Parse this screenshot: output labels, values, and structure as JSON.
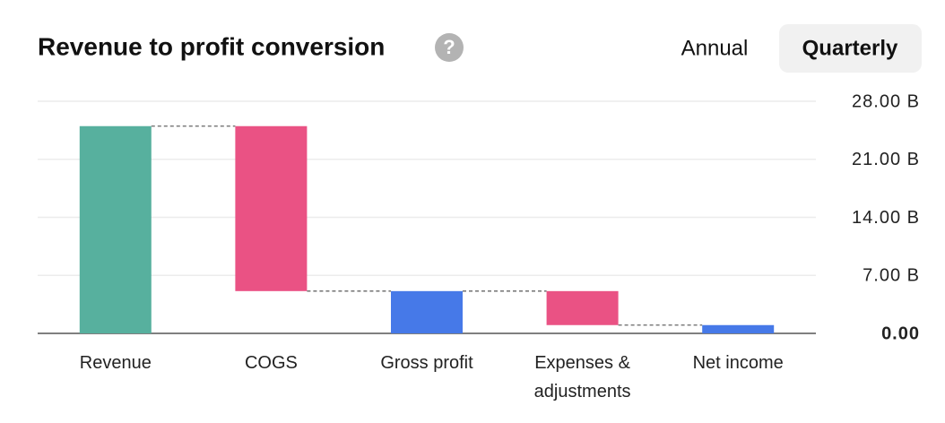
{
  "chart_data": {
    "type": "waterfall",
    "title": "Revenue to profit conversion",
    "info_icon": "?",
    "tabs": [
      "Annual",
      "Quarterly"
    ],
    "selected_tab": 1,
    "categories": [
      "Revenue",
      "COGS",
      "Gross profit",
      "Expenses & adjustments",
      "Net income"
    ],
    "values": [
      25.0,
      -19.9,
      5.1,
      -4.1,
      1.0
    ],
    "measures": [
      "total",
      "relative",
      "total",
      "relative",
      "total"
    ],
    "colors": [
      "#57b09e",
      "#ea5284",
      "#4679e8",
      "#ea5284",
      "#4679e8"
    ],
    "ylim": [
      0,
      28
    ],
    "yticks": [
      {
        "value": 0,
        "label": "0.00"
      },
      {
        "value": 7,
        "label": "7.00 B"
      },
      {
        "value": 14,
        "label": "14.00 B"
      },
      {
        "value": 21,
        "label": "21.00 B"
      },
      {
        "value": 28,
        "label": "28.00 B"
      }
    ],
    "grid": true
  }
}
